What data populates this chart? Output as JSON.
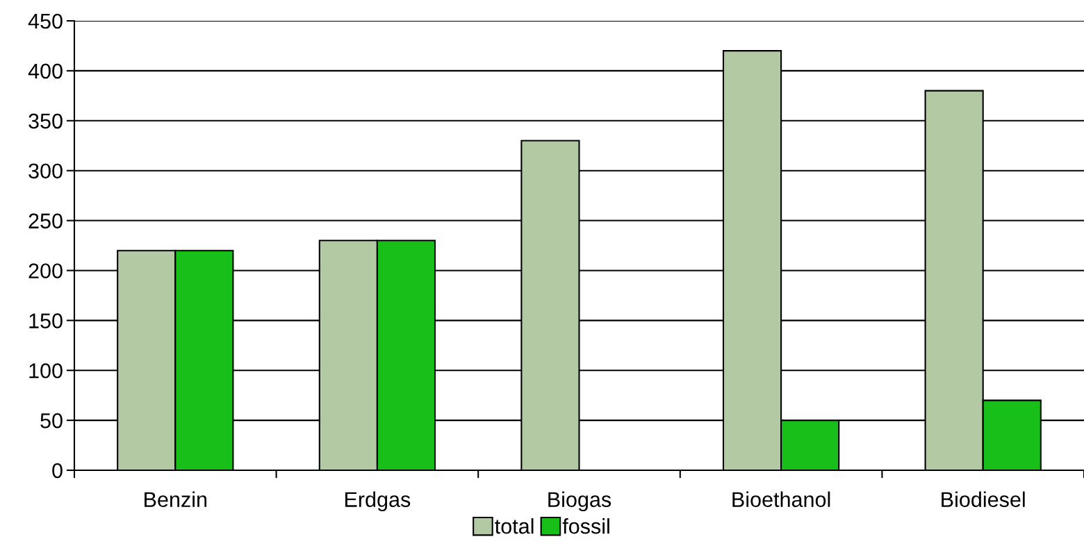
{
  "chart_data": {
    "type": "bar",
    "categories": [
      "Benzin",
      "Erdgas",
      "Biogas",
      "Bioethanol",
      "Biodiesel"
    ],
    "series": [
      {
        "name": "total",
        "color": "#b3c9a3",
        "values": [
          220,
          230,
          330,
          420,
          380
        ]
      },
      {
        "name": "fossil",
        "color": "#18bf18",
        "values": [
          220,
          230,
          null,
          50,
          70
        ]
      }
    ],
    "ylim": [
      0,
      450
    ],
    "yticks": [
      0,
      50,
      100,
      150,
      200,
      250,
      300,
      350,
      400,
      450
    ],
    "grid": "y",
    "legend": "bottom"
  }
}
